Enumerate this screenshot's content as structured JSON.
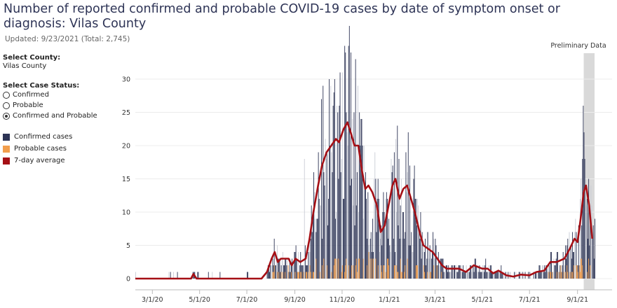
{
  "header": {
    "title": "Number of reported confirmed and probable COVID-19 cases by date of symptom onset or diagnosis: Vilas County",
    "subtitle": "Updated: 9/23/2021 (Total: 2,745)"
  },
  "sidebar": {
    "county_label": "Select County:",
    "county_value": "Vilas County",
    "status_label": "Select Case Status:",
    "options": [
      "Confirmed",
      "Probable",
      "Confirmed and Probable"
    ],
    "selected_index": 2
  },
  "legend": {
    "items": [
      {
        "label": "Confirmed cases",
        "color": "#2d3455"
      },
      {
        "label": "Probable cases",
        "color": "#f29e4c"
      },
      {
        "label": "7-day average",
        "color": "#a50f15"
      }
    ]
  },
  "colors": {
    "confirmed": "#2d3455",
    "probable": "#f29e4c",
    "average": "#a50f15",
    "preliminary_band": "#d9d9d9"
  },
  "chart_data": {
    "type": "bar",
    "x_axis": {
      "type": "date",
      "range": [
        "2020-02-08",
        "2021-09-23"
      ],
      "tick_labels": [
        "3/1/20",
        "5/1/20",
        "7/1/20",
        "9/1/20",
        "11/1/20",
        "1/1/21",
        "3/1/21",
        "5/1/21",
        "7/1/21",
        "9/1/21"
      ],
      "tick_dates": [
        "2020-03-01",
        "2020-05-01",
        "2020-07-01",
        "2020-09-01",
        "2020-11-01",
        "2021-01-01",
        "2021-03-01",
        "2021-05-01",
        "2021-07-01",
        "2021-09-01"
      ]
    },
    "y_axis": {
      "range": [
        0,
        32
      ],
      "ticks": [
        0,
        5,
        10,
        15,
        20,
        25,
        30
      ]
    },
    "grid": "horizontal",
    "preliminary": {
      "label": "Preliminary Data",
      "start": "2021-09-09",
      "end": "2021-09-23"
    },
    "series": [
      {
        "name": "7-day average",
        "type": "line",
        "points": [
          [
            "2020-02-08",
            0
          ],
          [
            "2020-04-20",
            0
          ],
          [
            "2020-04-23",
            0.7
          ],
          [
            "2020-04-27",
            0
          ],
          [
            "2020-07-20",
            0
          ],
          [
            "2020-07-27",
            1
          ],
          [
            "2020-08-02",
            3
          ],
          [
            "2020-08-06",
            4
          ],
          [
            "2020-08-10",
            2.5
          ],
          [
            "2020-08-14",
            3
          ],
          [
            "2020-08-24",
            3
          ],
          [
            "2020-08-28",
            2
          ],
          [
            "2020-09-02",
            3
          ],
          [
            "2020-09-08",
            2.5
          ],
          [
            "2020-09-15",
            3
          ],
          [
            "2020-09-20",
            6
          ],
          [
            "2020-09-25",
            10
          ],
          [
            "2020-10-01",
            14
          ],
          [
            "2020-10-06",
            17
          ],
          [
            "2020-10-12",
            19
          ],
          [
            "2020-10-18",
            20
          ],
          [
            "2020-10-24",
            21
          ],
          [
            "2020-10-28",
            20.5
          ],
          [
            "2020-11-03",
            22.5
          ],
          [
            "2020-11-08",
            23.5
          ],
          [
            "2020-11-12",
            22
          ],
          [
            "2020-11-17",
            20
          ],
          [
            "2020-11-22",
            20
          ],
          [
            "2020-11-27",
            16
          ],
          [
            "2020-12-01",
            13.5
          ],
          [
            "2020-12-05",
            14
          ],
          [
            "2020-12-10",
            13
          ],
          [
            "2020-12-16",
            11
          ],
          [
            "2020-12-21",
            7
          ],
          [
            "2020-12-26",
            8
          ],
          [
            "2020-12-31",
            11
          ],
          [
            "2021-01-05",
            14
          ],
          [
            "2021-01-09",
            15
          ],
          [
            "2021-01-14",
            12
          ],
          [
            "2021-01-19",
            13.5
          ],
          [
            "2021-01-24",
            14
          ],
          [
            "2021-01-29",
            12
          ],
          [
            "2021-02-03",
            10
          ],
          [
            "2021-02-09",
            7
          ],
          [
            "2021-02-14",
            5
          ],
          [
            "2021-02-20",
            4.5
          ],
          [
            "2021-02-26",
            4
          ],
          [
            "2021-03-04",
            3
          ],
          [
            "2021-03-10",
            2
          ],
          [
            "2021-03-16",
            1.5
          ],
          [
            "2021-03-22",
            1.5
          ],
          [
            "2021-04-01",
            1.5
          ],
          [
            "2021-04-10",
            1
          ],
          [
            "2021-04-20",
            2
          ],
          [
            "2021-05-01",
            1.5
          ],
          [
            "2021-05-08",
            1.5
          ],
          [
            "2021-05-15",
            0.8
          ],
          [
            "2021-05-22",
            1.2
          ],
          [
            "2021-06-01",
            0.5
          ],
          [
            "2021-06-10",
            0.3
          ],
          [
            "2021-06-20",
            0.6
          ],
          [
            "2021-07-01",
            0.5
          ],
          [
            "2021-07-10",
            1
          ],
          [
            "2021-07-20",
            1.2
          ],
          [
            "2021-07-28",
            2.5
          ],
          [
            "2021-08-05",
            2.5
          ],
          [
            "2021-08-15",
            3
          ],
          [
            "2021-08-22",
            4.5
          ],
          [
            "2021-08-28",
            6
          ],
          [
            "2021-09-01",
            5.5
          ],
          [
            "2021-09-05",
            9
          ],
          [
            "2021-09-09",
            13
          ],
          [
            "2021-09-12",
            14
          ],
          [
            "2021-09-16",
            11
          ],
          [
            "2021-09-20",
            6
          ]
        ]
      },
      {
        "name": "Confirmed cases",
        "type": "bar",
        "daily": true,
        "notable": [
          [
            "2020-10-29",
            31
          ],
          [
            "2020-11-01",
            31
          ],
          [
            "2021-09-08",
            26
          ],
          [
            "2020-09-13",
            18
          ]
        ]
      },
      {
        "name": "Probable cases",
        "type": "bar",
        "daily": true
      }
    ]
  }
}
